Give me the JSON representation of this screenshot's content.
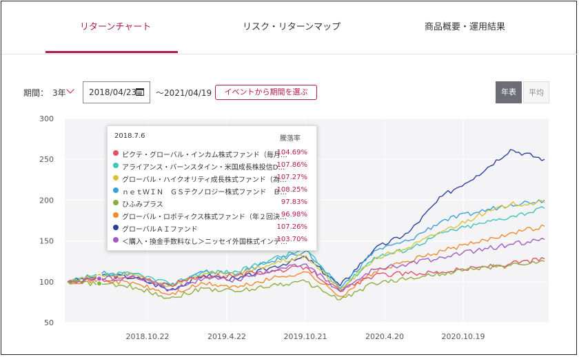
{
  "tabs": {
    "return_chart": "リターンチャート",
    "risk_map": "リスク・リターンマップ",
    "overview": "商品概要・運用結果"
  },
  "controls": {
    "period_label": "期間：",
    "period_value": "3年",
    "start_date": "2018/04/23",
    "end_date": "〜2021/04/19",
    "event_button": "イベントから期間を選ぶ",
    "annual_button": "年表",
    "average_button": "平均"
  },
  "colors": {
    "accent": "#b3174f"
  },
  "tooltip": {
    "date": "2018.7.6",
    "header": "騰落率",
    "rows": [
      {
        "name": "ピクテ・グローバル・インカム株式ファンド（毎月…",
        "value": "104.69%",
        "color": "#e0506a"
      },
      {
        "name": "アライアンス・バーンスタイン・米国成長株投信D…",
        "value": "107.86%",
        "color": "#3cc4b4"
      },
      {
        "name": "グローバル・ハイクオリティ成長株式ファンド（為…",
        "value": "107.27%",
        "color": "#d8c43a"
      },
      {
        "name": "ｎｅｔＷＩＮ　ＧＳテクノロジー株式ファンド　Ｂ…",
        "value": "108.25%",
        "color": "#3aa0d8"
      },
      {
        "name": "ひふみプラス",
        "value": "97.83%",
        "color": "#8cae3c"
      },
      {
        "name": "グローバル・ロボティクス株式ファンド（年２回決…",
        "value": "96.98%",
        "color": "#ef8a2c"
      },
      {
        "name": "グローバルＡＩファンド",
        "value": "107.26%",
        "color": "#2e3e9e"
      },
      {
        "name": "＜購入・換金手数料なし＞ニッセイ外国株式インデ…",
        "value": "103.70%",
        "color": "#a35abf"
      }
    ]
  },
  "chart_data": {
    "type": "line",
    "ylim": [
      50,
      300
    ],
    "yticks": [
      300,
      250,
      200,
      150,
      100,
      50
    ],
    "x_tick_labels": [
      "2018.10.22",
      "2019.4.22",
      "2019.10.21",
      "2020.4.20",
      "2020.10.19"
    ],
    "grid": true,
    "series": [
      {
        "name": "グローバルＡＩファンド",
        "color": "#2e3e9e",
        "values": [
          100,
          108,
          105,
          90,
          108,
          103,
          118,
          130,
          95,
          140,
          160,
          205,
          230,
          262,
          250
        ]
      },
      {
        "name": "ｎｅｔＷＩＮ　ＧＳテクノロジー株式ファンド　Ｂ…",
        "color": "#3aa0d8",
        "values": [
          100,
          110,
          110,
          95,
          112,
          110,
          125,
          138,
          92,
          138,
          150,
          175,
          185,
          195,
          200
        ]
      },
      {
        "name": "アライアンス・バーンスタイン・米国成長株投信D…",
        "color": "#3cc4b4",
        "values": [
          100,
          108,
          110,
          97,
          112,
          112,
          128,
          140,
          90,
          130,
          140,
          160,
          170,
          180,
          190
        ]
      },
      {
        "name": "グローバル・ハイクオリティ成長株式ファンド（為…",
        "color": "#d8c43a",
        "values": [
          100,
          107,
          108,
          95,
          110,
          108,
          122,
          132,
          90,
          128,
          142,
          162,
          180,
          195,
          197
        ]
      },
      {
        "name": "グローバル・ロボティクス株式ファンド（年２回決…",
        "color": "#ef8a2c",
        "values": [
          100,
          102,
          98,
          84,
          98,
          93,
          104,
          112,
          82,
          112,
          125,
          138,
          148,
          160,
          168
        ]
      },
      {
        "name": "ピクテ・グローバル・インカム株式ファンド（毎月…",
        "color": "#e0506a",
        "values": [
          100,
          103,
          105,
          96,
          107,
          108,
          113,
          118,
          88,
          108,
          110,
          112,
          117,
          122,
          128
        ]
      },
      {
        "name": "＜購入・換金手数料なし＞ニッセイ外国株式インデ…",
        "color": "#a35abf",
        "values": [
          100,
          104,
          105,
          90,
          104,
          102,
          114,
          122,
          88,
          115,
          122,
          130,
          138,
          146,
          152
        ]
      },
      {
        "name": "ひふみプラス",
        "color": "#8cae3c",
        "values": [
          100,
          97,
          93,
          80,
          92,
          88,
          96,
          100,
          78,
          98,
          104,
          110,
          116,
          120,
          125
        ]
      }
    ]
  }
}
